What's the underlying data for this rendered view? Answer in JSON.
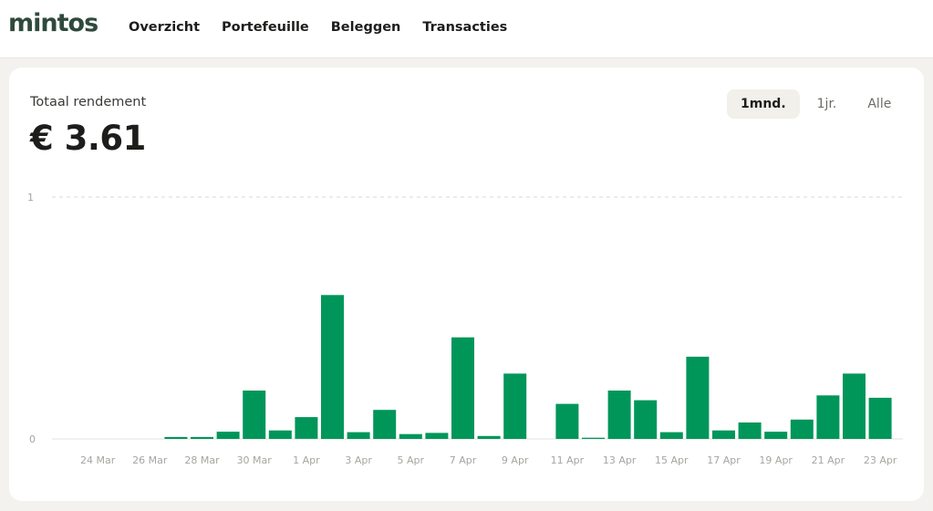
{
  "nav": {
    "logo": "mintos",
    "items": [
      "Overzicht",
      "Portefeuille",
      "Beleggen",
      "Transacties"
    ]
  },
  "summary": {
    "label": "Totaal rendement",
    "value": "€ 3.61"
  },
  "range_tabs": {
    "items": [
      "1mnd.",
      "1jr.",
      "Alle"
    ],
    "active": "1mnd."
  },
  "colors": {
    "bar": "#00965a",
    "logo": "#2f4a3c"
  },
  "chart_data": {
    "type": "bar",
    "categories": [
      "23 Mar",
      "24 Mar",
      "25 Mar",
      "26 Mar",
      "27 Mar",
      "28 Mar",
      "29 Mar",
      "30 Mar",
      "31 Mar",
      "1 Apr",
      "2 Apr",
      "3 Apr",
      "4 Apr",
      "5 Apr",
      "6 Apr",
      "7 Apr",
      "8 Apr",
      "9 Apr",
      "10 Apr",
      "11 Apr",
      "12 Apr",
      "13 Apr",
      "14 Apr",
      "15 Apr",
      "16 Apr",
      "17 Apr",
      "18 Apr",
      "19 Apr",
      "20 Apr",
      "21 Apr",
      "22 Apr",
      "23 Apr"
    ],
    "values": [
      0,
      0,
      0,
      0,
      0.008,
      0.008,
      0.03,
      0.2,
      0.035,
      0.09,
      0.595,
      0.028,
      0.12,
      0.02,
      0.025,
      0.42,
      0.012,
      0.27,
      0,
      0.145,
      0.005,
      0.2,
      0.16,
      0.028,
      0.34,
      0.035,
      0.068,
      0.03,
      0.08,
      0.18,
      0.27,
      0.17
    ],
    "x_tick_labels": [
      "24 Mar",
      "26 Mar",
      "28 Mar",
      "30 Mar",
      "1 Apr",
      "3 Apr",
      "5 Apr",
      "7 Apr",
      "9 Apr",
      "11 Apr",
      "13 Apr",
      "15 Apr",
      "17 Apr",
      "19 Apr",
      "21 Apr",
      "23 Apr"
    ],
    "y_tick_labels": [
      "0",
      "1"
    ],
    "ylim": [
      0,
      1
    ],
    "grid": true
  }
}
